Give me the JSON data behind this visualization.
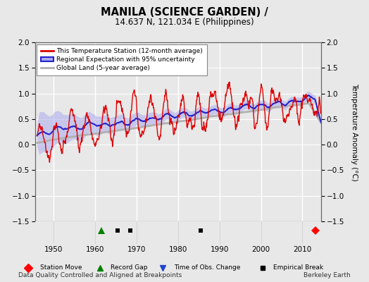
{
  "title": "MANILA (SCIENCE GARDEN) /",
  "subtitle": "14.637 N, 121.034 E (Philippines)",
  "footer_left": "Data Quality Controlled and Aligned at Breakpoints",
  "footer_right": "Berkeley Earth",
  "ylabel": "Temperature Anomaly (°C)",
  "xlim": [
    1945.5,
    2014.5
  ],
  "ylim": [
    -1.5,
    2.0
  ],
  "yticks": [
    -1.5,
    -1.0,
    -0.5,
    0.0,
    0.5,
    1.0,
    1.5,
    2.0
  ],
  "xticks": [
    1950,
    1960,
    1970,
    1980,
    1990,
    2000,
    2010
  ],
  "start_year": 1946.0,
  "end_year": 2014.5,
  "station_move_years": [
    2013.2
  ],
  "record_gap_years": [
    1961.5
  ],
  "time_obs_change_years": [],
  "empirical_break_years": [
    1965.5,
    1968.5,
    1985.5
  ],
  "bg_color": "#e8e8e8",
  "plot_bg_color": "#e8e8e8",
  "station_color": "#dd0000",
  "regional_color": "#2222cc",
  "regional_band_color": "#aaaaee",
  "global_color": "#b0b0b0",
  "legend_labels": [
    "This Temperature Station (12-month average)",
    "Regional Expectation with 95% uncertainty",
    "Global Land (5-year average)"
  ]
}
